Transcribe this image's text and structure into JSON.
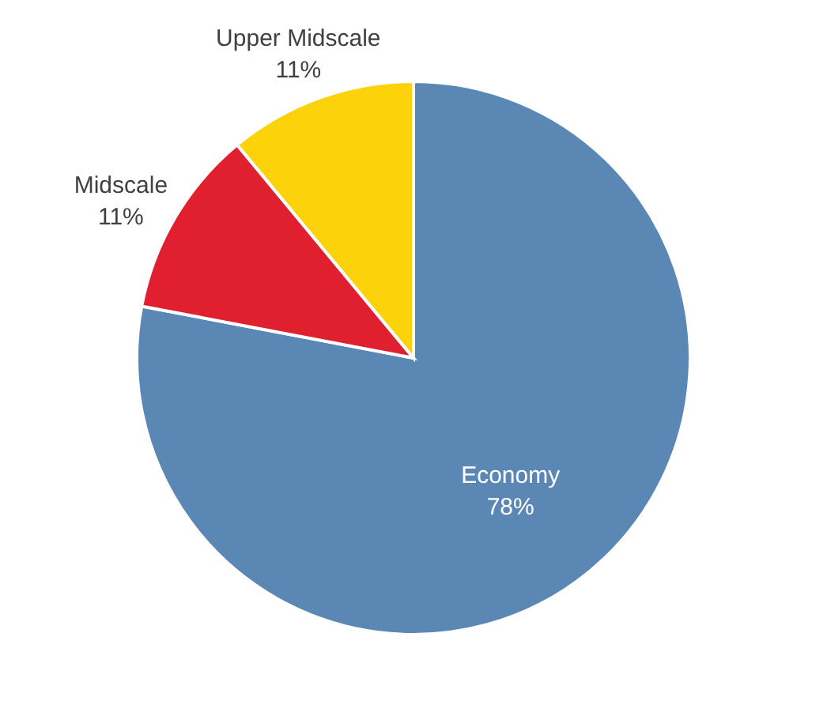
{
  "chart_data": {
    "type": "pie",
    "categories": [
      "Economy",
      "Midscale",
      "Upper Midscale"
    ],
    "values": [
      78,
      11,
      11
    ],
    "value_labels": [
      "78%",
      "11%",
      "11%"
    ],
    "colors": [
      "#5b87b5",
      "#e0202f",
      "#fcd20a"
    ],
    "legend": false
  }
}
